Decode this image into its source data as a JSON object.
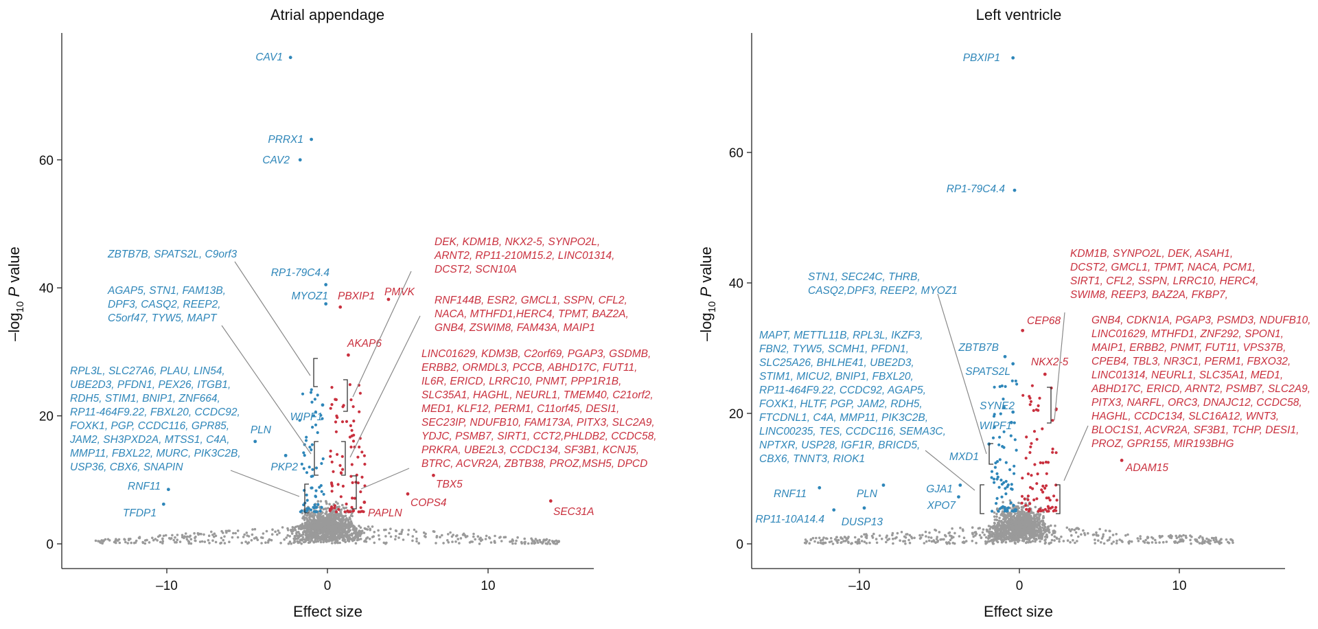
{
  "colors": {
    "blue": "#2e86b9",
    "red": "#c9303e",
    "grey": "#9a9a9a"
  },
  "chart_data": [
    {
      "type": "scatter",
      "title": "Atrial appendage",
      "xlabel": "Effect size",
      "ylabel_pre": "–log",
      "ylabel_sub": "10",
      "ylabel_post": " P value",
      "xlim": [
        -16.5,
        16.5
      ],
      "ylim": [
        -4,
        80
      ],
      "xticks": [
        -10,
        0,
        10
      ],
      "xtick_labels": [
        "–10",
        "0",
        "10"
      ],
      "yticks": [
        0,
        20,
        40,
        60
      ],
      "background_spread": 14.5,
      "labeled_points": [
        {
          "gene": "CAV1",
          "x": -2.3,
          "y": 76,
          "color": "blue"
        },
        {
          "gene": "PRRX1",
          "x": -1.0,
          "y": 63.2,
          "color": "blue"
        },
        {
          "gene": "CAV2",
          "x": -1.7,
          "y": 60,
          "color": "blue"
        },
        {
          "gene": "RP1-79C4.4",
          "x": -0.1,
          "y": 40.5,
          "color": "blue"
        },
        {
          "gene": "MYOZ1",
          "x": -0.1,
          "y": 37.5,
          "color": "blue"
        },
        {
          "gene": "PBXIP1",
          "x": 0.8,
          "y": 37,
          "color": "red"
        },
        {
          "gene": "PMVK",
          "x": 3.8,
          "y": 38.2,
          "color": "red"
        },
        {
          "gene": "AKAP6",
          "x": 1.3,
          "y": 29.5,
          "color": "red"
        },
        {
          "gene": "WIPF1",
          "x": -0.3,
          "y": 21.7,
          "color": "blue"
        },
        {
          "gene": "PLN",
          "x": -4.5,
          "y": 16,
          "color": "blue"
        },
        {
          "gene": "PKP2",
          "x": -2.6,
          "y": 13.8,
          "color": "blue"
        },
        {
          "gene": "RNF11",
          "x": -9.9,
          "y": 8.5,
          "color": "blue"
        },
        {
          "gene": "TFDP1",
          "x": -10.2,
          "y": 6.2,
          "color": "blue"
        },
        {
          "gene": "TBX5",
          "x": 6.6,
          "y": 10.7,
          "color": "red"
        },
        {
          "gene": "COPS4",
          "x": 5,
          "y": 7.8,
          "color": "red"
        },
        {
          "gene": "PAPLN",
          "x": 2.3,
          "y": 6.5,
          "color": "red"
        },
        {
          "gene": "SEC31A",
          "x": 13.9,
          "y": 6.7,
          "color": "red"
        }
      ],
      "gene_groups": [
        {
          "color": "blue",
          "text": [
            "ZBTB7B, SPATS2L, C9orf3"
          ]
        },
        {
          "color": "blue",
          "text": [
            "AGAP5, STN1, FAM13B,",
            "DPF3, CASQ2, REEP2,",
            "C5orf47, TYW5, MAPT"
          ]
        },
        {
          "color": "blue",
          "text": [
            "RPL3L, SLC27A6, PLAU, LIN54,",
            "UBE2D3, PFDN1, PEX26, ITGB1,",
            "RDH5, STIM1, BNIP1, ZNF664,",
            "RP11-464F9.22, FBXL20, CCDC92,",
            "FOXK1, PGP, CCDC116, GPR85,",
            "JAM2, SH3PXD2A, MTSS1, C4A,",
            "MMP11, FBXL22, MURC, PIK3C2B,",
            "USP36, CBX6, SNAPIN"
          ]
        },
        {
          "color": "red",
          "text": [
            "DEK, KDM1B, NKX2-5, SYNPO2L,",
            "ARNT2, RP11-210M15.2, LINC01314,",
            "DCST2, SCN10A"
          ]
        },
        {
          "color": "red",
          "text": [
            "RNF144B, ESR2, GMCL1, SSPN, CFL2,",
            "NACA, MTHFD1,HERC4, TPMT, BAZ2A,",
            "GNB4, ZSWIM8, FAM43A, MAIP1"
          ]
        },
        {
          "color": "red",
          "text": [
            "LINC01629, KDM3B, C2orf69, PGAP3, GSDMB,",
            "ERBB2, ORMDL3, PCCB, ABHD17C, FUT11,",
            "IL6R, ERICD, LRRC10, PNMT, PPP1R1B,",
            "SLC35A1, HAGHL, NEURL1, TMEM40, C21orf2,",
            "MED1, KLF12, PERM1, C11orf45, DESI1,",
            "SEC23IP, NDUFB10, FAM173A, PITX3, SLC2A9,",
            "YDJC, PSMB7, SIRT1, CCT2,PHLDB2, CCDC58,",
            "PRKRA, UBE2L3, CCDC134, SF3B1, KCNJ5,",
            "BTRC, ACVR2A, ZBTB38, PROZ,MSH5, DPCD"
          ]
        }
      ]
    },
    {
      "type": "scatter",
      "title": "Left ventricle",
      "xlabel": "Effect size",
      "ylabel_pre": "–log",
      "ylabel_sub": "10",
      "ylabel_post": " P value",
      "xlim": [
        -16.5,
        16.5
      ],
      "ylim": [
        -4,
        80
      ],
      "xticks": [
        -10,
        0,
        10
      ],
      "xtick_labels": [
        "–10",
        "0",
        "10"
      ],
      "yticks": [
        0,
        20,
        40,
        60
      ],
      "background_spread": 13.5,
      "labeled_points": [
        {
          "gene": "PBXIP1",
          "x": -0.4,
          "y": 74.5,
          "color": "blue"
        },
        {
          "gene": "RP1-79C4.4",
          "x": -0.3,
          "y": 54.2,
          "color": "blue"
        },
        {
          "gene": "CEP68",
          "x": 0.2,
          "y": 32.7,
          "color": "red"
        },
        {
          "gene": "ZBTB7B",
          "x": -0.9,
          "y": 28.7,
          "color": "blue"
        },
        {
          "gene": "SPATS2L",
          "x": -0.4,
          "y": 27.6,
          "color": "blue"
        },
        {
          "gene": "NKX2-5",
          "x": 1.6,
          "y": 26,
          "color": "red"
        },
        {
          "gene": "SYNE2",
          "x": -0.4,
          "y": 20.2,
          "color": "blue"
        },
        {
          "gene": "WIPF1",
          "x": -0.5,
          "y": 18.6,
          "color": "blue"
        },
        {
          "gene": "MXD1",
          "x": -1.9,
          "y": 15.3,
          "color": "blue"
        },
        {
          "gene": "ADAM15",
          "x": 6.4,
          "y": 12.8,
          "color": "red"
        },
        {
          "gene": "RNF11",
          "x": -12.5,
          "y": 8.6,
          "color": "blue"
        },
        {
          "gene": "PLN",
          "x": -8.5,
          "y": 9,
          "color": "blue"
        },
        {
          "gene": "GJA1",
          "x": -3.7,
          "y": 9,
          "color": "blue"
        },
        {
          "gene": "XPO7",
          "x": -3.8,
          "y": 7.2,
          "color": "blue"
        },
        {
          "gene": "RP11-10A14.4",
          "x": -11.6,
          "y": 5.2,
          "color": "blue"
        },
        {
          "gene": "DUSP13",
          "x": -9.7,
          "y": 5.5,
          "color": "blue"
        }
      ],
      "gene_groups": [
        {
          "color": "blue",
          "text": [
            "STN1, SEC24C, THRB,",
            "CASQ2,DPF3, REEP2, MYOZ1"
          ]
        },
        {
          "color": "blue",
          "text": [
            "MAPT, METTL11B, RPL3L, IKZF3,",
            "FBN2, TYW5, SCMH1, PFDN1,",
            "SLC25A26, BHLHE41, UBE2D3,",
            "STIM1, MICU2, BNIP1, FBXL20,",
            "RP11-464F9.22, CCDC92, AGAP5,",
            "FOXK1, HLTF, PGP, JAM2, RDH5,",
            "FTCDNL1, C4A, MMP11, PIK3C2B,",
            "LINC00235, TES, CCDC116, SEMA3C,",
            "NPTXR, USP28, IGF1R, BRICD5,",
            "CBX6, TNNT3, RIOK1"
          ]
        },
        {
          "color": "red",
          "text": [
            "KDM1B, SYNPO2L, DEK, ASAH1,",
            "DCST2, GMCL1, TPMT, NACA, PCM1,",
            "SIRT1, CFL2, SSPN, LRRC10, HERC4,",
            "SWIM8, REEP3, BAZ2A, FKBP7,"
          ]
        },
        {
          "color": "red",
          "text": [
            "GNB4, CDKN1A, PGAP3, PSMD3, NDUFB10,",
            "LINC01629, MTHFD1, ZNF292, SPON1,",
            "MAIP1, ERBB2, PNMT, FUT11, VPS37B,",
            "CPEB4, TBL3, NR3C1, PERM1, FBXO32,",
            "LINC01314, NEURL1, SLC35A1, MED1,",
            "ABHD17C, ERICD, ARNT2, PSMB7, SLC2A9,",
            "PITX3, NARFL, ORC3, DNAJC12, CCDC58,",
            "HAGHL, CCDC134, SLC16A12, WNT3,",
            "BLOC1S1, ACVR2A, SF3B1, TCHP, DESI1,",
            "PROZ, GPR155, MIR193BHG"
          ]
        }
      ]
    }
  ]
}
